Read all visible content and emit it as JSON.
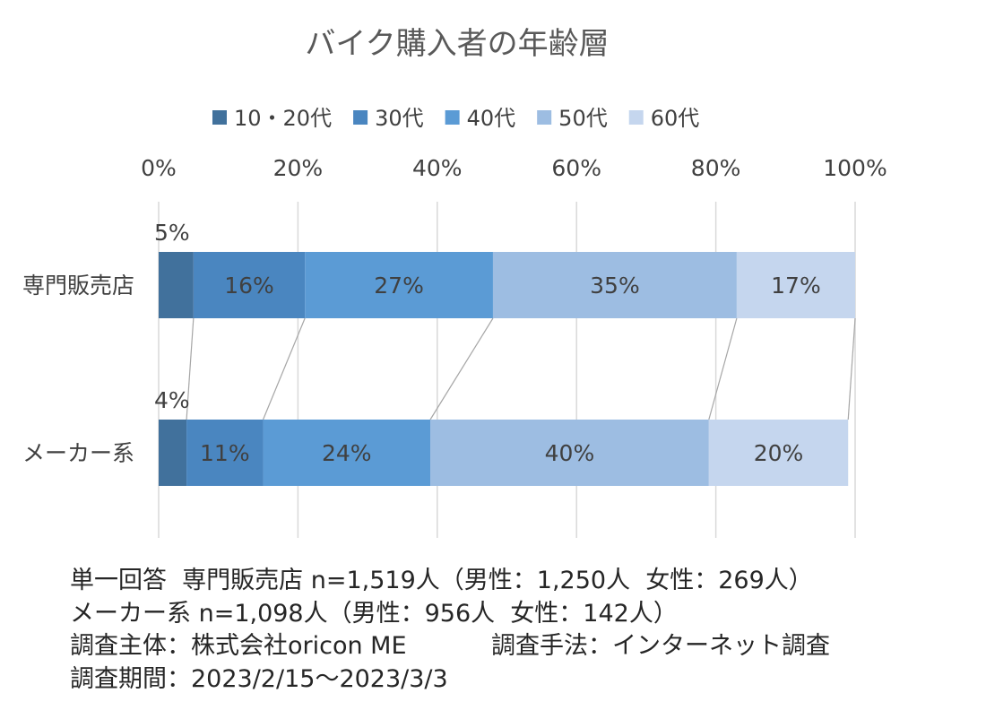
{
  "chart_data": {
    "type": "bar",
    "orientation": "horizontal",
    "stacked": "percent",
    "title": "バイク購入者の年齢層",
    "categories": [
      "専門販売店",
      "メーカー系"
    ],
    "series": [
      {
        "name": "10・20代",
        "values": [
          5,
          4
        ],
        "labels": [
          "5%",
          "4%"
        ],
        "color": "#41719c",
        "label_position": "above"
      },
      {
        "name": "30代",
        "values": [
          16,
          11
        ],
        "labels": [
          "16%",
          "11%"
        ],
        "color": "#4a86c0",
        "label_position": "inside"
      },
      {
        "name": "40代",
        "values": [
          27,
          24
        ],
        "labels": [
          "27%",
          "24%"
        ],
        "color": "#5b9bd5",
        "label_position": "inside"
      },
      {
        "name": "50代",
        "values": [
          35,
          40
        ],
        "labels": [
          "35%",
          "40%"
        ],
        "color": "#9dbde2",
        "label_position": "inside"
      },
      {
        "name": "60代",
        "values": [
          17,
          20
        ],
        "labels": [
          "17%",
          "20%"
        ],
        "color": "#c5d6ee",
        "label_position": "inside"
      }
    ],
    "x_ticks": [
      "0%",
      "20%",
      "40%",
      "60%",
      "80%",
      "100%"
    ],
    "xlim": [
      0,
      100
    ],
    "x_axis_position": "top",
    "grid": true,
    "series_lines": true,
    "legend_position": "top"
  },
  "colors": {
    "label_text": "#404040",
    "grid": "#d9d9d9",
    "series_line": "#a6a6a6"
  },
  "notes": [
    "単一回答  専門販売店 n=1,519人（男性：1,250人  女性：269人）",
    "メーカー系 n=1,098人（男性：956人  女性：142人）",
    "調査主体：株式会社oricon ME           調査手法：インターネット調査",
    "調査期間：2023/2/15～2023/3/3"
  ]
}
